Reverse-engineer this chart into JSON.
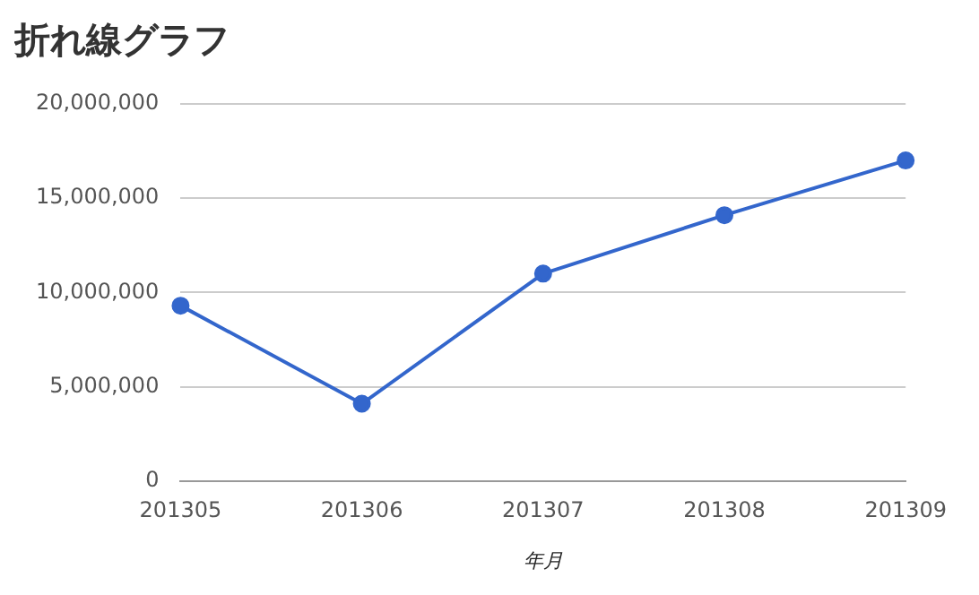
{
  "chart_data": {
    "type": "line",
    "title": "折れ線グラフ",
    "xlabel": "年月",
    "categories": [
      "201305",
      "201306",
      "201307",
      "201308",
      "201309"
    ],
    "series": [
      {
        "color": "#3366cc",
        "values": [
          9300000,
          4100000,
          11000000,
          14100000,
          17000000
        ]
      }
    ],
    "ylim": [
      0,
      20000000
    ],
    "yticks": [
      {
        "value": 0,
        "label": "0"
      },
      {
        "value": 5000000,
        "label": "5,000,000"
      },
      {
        "value": 10000000,
        "label": "10,000,000"
      },
      {
        "value": 15000000,
        "label": "15,000,000"
      },
      {
        "value": 20000000,
        "label": "20,000,000"
      }
    ],
    "grid": "y",
    "legend": false,
    "marker": "circle",
    "line_style": "solid"
  }
}
